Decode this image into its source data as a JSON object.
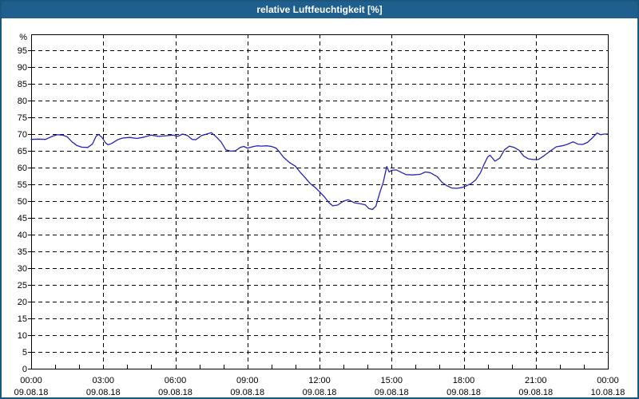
{
  "window": {
    "title": "relative Luftfeuchtigkeit [%]"
  },
  "colors": {
    "titlebar_bg": "#1e5f8d",
    "titlebar_text": "#ffffff",
    "window_border": "#1b567f",
    "plot_border": "#000000",
    "gridline": "#000000",
    "tick": "#000000",
    "label_text": "#000000",
    "line": "#2323bb",
    "plot_background": "#ffffff"
  },
  "chart_data": {
    "type": "line",
    "title": "relative Luftfeuchtigkeit [%]",
    "xlabel": "",
    "ylabel": "%",
    "y_unit_label": "%",
    "ylim": [
      0,
      100
    ],
    "y_ticks": [
      0,
      5,
      10,
      15,
      20,
      25,
      30,
      35,
      40,
      45,
      50,
      55,
      60,
      65,
      70,
      75,
      80,
      85,
      90,
      95
    ],
    "grid": "dashed",
    "legend": "none",
    "x_range_hours": [
      0,
      24
    ],
    "x_minor_tick_every_hours": 1,
    "x_major_gridline_hours": [
      3,
      6,
      9,
      12,
      15,
      18,
      21
    ],
    "x_ticks": [
      {
        "hour": 0,
        "time": "00:00",
        "date": "09.08.18"
      },
      {
        "hour": 3,
        "time": "03:00",
        "date": "09.08.18"
      },
      {
        "hour": 6,
        "time": "06:00",
        "date": "09.08.18"
      },
      {
        "hour": 9,
        "time": "09:00",
        "date": "09.08.18"
      },
      {
        "hour": 12,
        "time": "12:00",
        "date": "09.08.18"
      },
      {
        "hour": 15,
        "time": "15:00",
        "date": "09.08.18"
      },
      {
        "hour": 18,
        "time": "18:00",
        "date": "09.08.18"
      },
      {
        "hour": 21,
        "time": "21:00",
        "date": "09.08.18"
      },
      {
        "hour": 24,
        "time": "00:00",
        "date": "10.08.18"
      }
    ],
    "series": [
      {
        "name": "relative Luftfeuchtigkeit [%]",
        "points": [
          [
            0.0,
            68.4
          ],
          [
            0.3,
            68.5
          ],
          [
            0.6,
            68.4
          ],
          [
            0.9,
            69.4
          ],
          [
            1.1,
            69.8
          ],
          [
            1.3,
            69.7
          ],
          [
            1.5,
            69.2
          ],
          [
            1.7,
            67.7
          ],
          [
            1.9,
            66.6
          ],
          [
            2.1,
            66.1
          ],
          [
            2.35,
            66.0
          ],
          [
            2.55,
            67.0
          ],
          [
            2.7,
            69.3
          ],
          [
            2.8,
            69.9
          ],
          [
            2.95,
            69.0
          ],
          [
            3.1,
            67.3
          ],
          [
            3.2,
            66.8
          ],
          [
            3.35,
            67.2
          ],
          [
            3.6,
            68.3
          ],
          [
            3.8,
            68.8
          ],
          [
            4.1,
            69.0
          ],
          [
            4.4,
            68.7
          ],
          [
            4.7,
            69.1
          ],
          [
            5.0,
            69.7
          ],
          [
            5.3,
            69.3
          ],
          [
            5.6,
            69.5
          ],
          [
            5.9,
            69.7
          ],
          [
            6.1,
            69.3
          ],
          [
            6.3,
            70.0
          ],
          [
            6.5,
            69.6
          ],
          [
            6.7,
            68.4
          ],
          [
            6.85,
            68.3
          ],
          [
            7.1,
            69.6
          ],
          [
            7.35,
            70.1
          ],
          [
            7.5,
            70.4
          ],
          [
            7.7,
            69.2
          ],
          [
            7.9,
            67.7
          ],
          [
            8.1,
            65.3
          ],
          [
            8.3,
            64.9
          ],
          [
            8.5,
            65.0
          ],
          [
            8.7,
            66.0
          ],
          [
            8.85,
            66.3
          ],
          [
            9.0,
            65.8
          ],
          [
            9.2,
            66.2
          ],
          [
            9.4,
            66.5
          ],
          [
            9.6,
            66.4
          ],
          [
            9.8,
            66.5
          ],
          [
            10.0,
            66.3
          ],
          [
            10.2,
            65.8
          ],
          [
            10.35,
            64.5
          ],
          [
            10.5,
            63.1
          ],
          [
            10.75,
            61.5
          ],
          [
            11.0,
            60.4
          ],
          [
            11.2,
            58.6
          ],
          [
            11.4,
            57.0
          ],
          [
            11.6,
            55.3
          ],
          [
            11.8,
            54.2
          ],
          [
            12.0,
            52.8
          ],
          [
            12.2,
            51.3
          ],
          [
            12.4,
            49.5
          ],
          [
            12.55,
            48.6
          ],
          [
            12.75,
            48.8
          ],
          [
            13.0,
            50.0
          ],
          [
            13.2,
            50.4
          ],
          [
            13.45,
            49.5
          ],
          [
            13.7,
            49.2
          ],
          [
            13.9,
            48.9
          ],
          [
            14.05,
            47.8
          ],
          [
            14.2,
            47.5
          ],
          [
            14.35,
            48.5
          ],
          [
            14.5,
            52.3
          ],
          [
            14.65,
            55.5
          ],
          [
            14.8,
            60.3
          ],
          [
            14.9,
            58.7
          ],
          [
            15.0,
            59.2
          ],
          [
            15.2,
            59.3
          ],
          [
            15.4,
            58.6
          ],
          [
            15.6,
            57.9
          ],
          [
            15.9,
            57.8
          ],
          [
            16.2,
            58.0
          ],
          [
            16.4,
            58.7
          ],
          [
            16.6,
            58.5
          ],
          [
            16.9,
            57.3
          ],
          [
            17.1,
            55.6
          ],
          [
            17.3,
            54.6
          ],
          [
            17.5,
            53.9
          ],
          [
            17.7,
            53.8
          ],
          [
            17.9,
            54.0
          ],
          [
            18.1,
            54.5
          ],
          [
            18.3,
            55.2
          ],
          [
            18.5,
            56.3
          ],
          [
            18.7,
            58.5
          ],
          [
            18.85,
            61.0
          ],
          [
            19.0,
            63.2
          ],
          [
            19.1,
            63.7
          ],
          [
            19.3,
            61.9
          ],
          [
            19.5,
            62.8
          ],
          [
            19.7,
            65.3
          ],
          [
            19.9,
            66.4
          ],
          [
            20.1,
            66.0
          ],
          [
            20.3,
            65.2
          ],
          [
            20.5,
            63.4
          ],
          [
            20.7,
            62.6
          ],
          [
            20.9,
            62.4
          ],
          [
            21.1,
            62.4
          ],
          [
            21.3,
            63.3
          ],
          [
            21.6,
            64.9
          ],
          [
            21.85,
            66.2
          ],
          [
            22.1,
            66.5
          ],
          [
            22.3,
            66.9
          ],
          [
            22.55,
            67.7
          ],
          [
            22.75,
            67.0
          ],
          [
            22.95,
            66.9
          ],
          [
            23.15,
            67.5
          ],
          [
            23.35,
            68.8
          ],
          [
            23.55,
            70.3
          ],
          [
            23.7,
            69.8
          ],
          [
            23.85,
            70.0
          ],
          [
            24.0,
            70.0
          ]
        ]
      }
    ]
  }
}
